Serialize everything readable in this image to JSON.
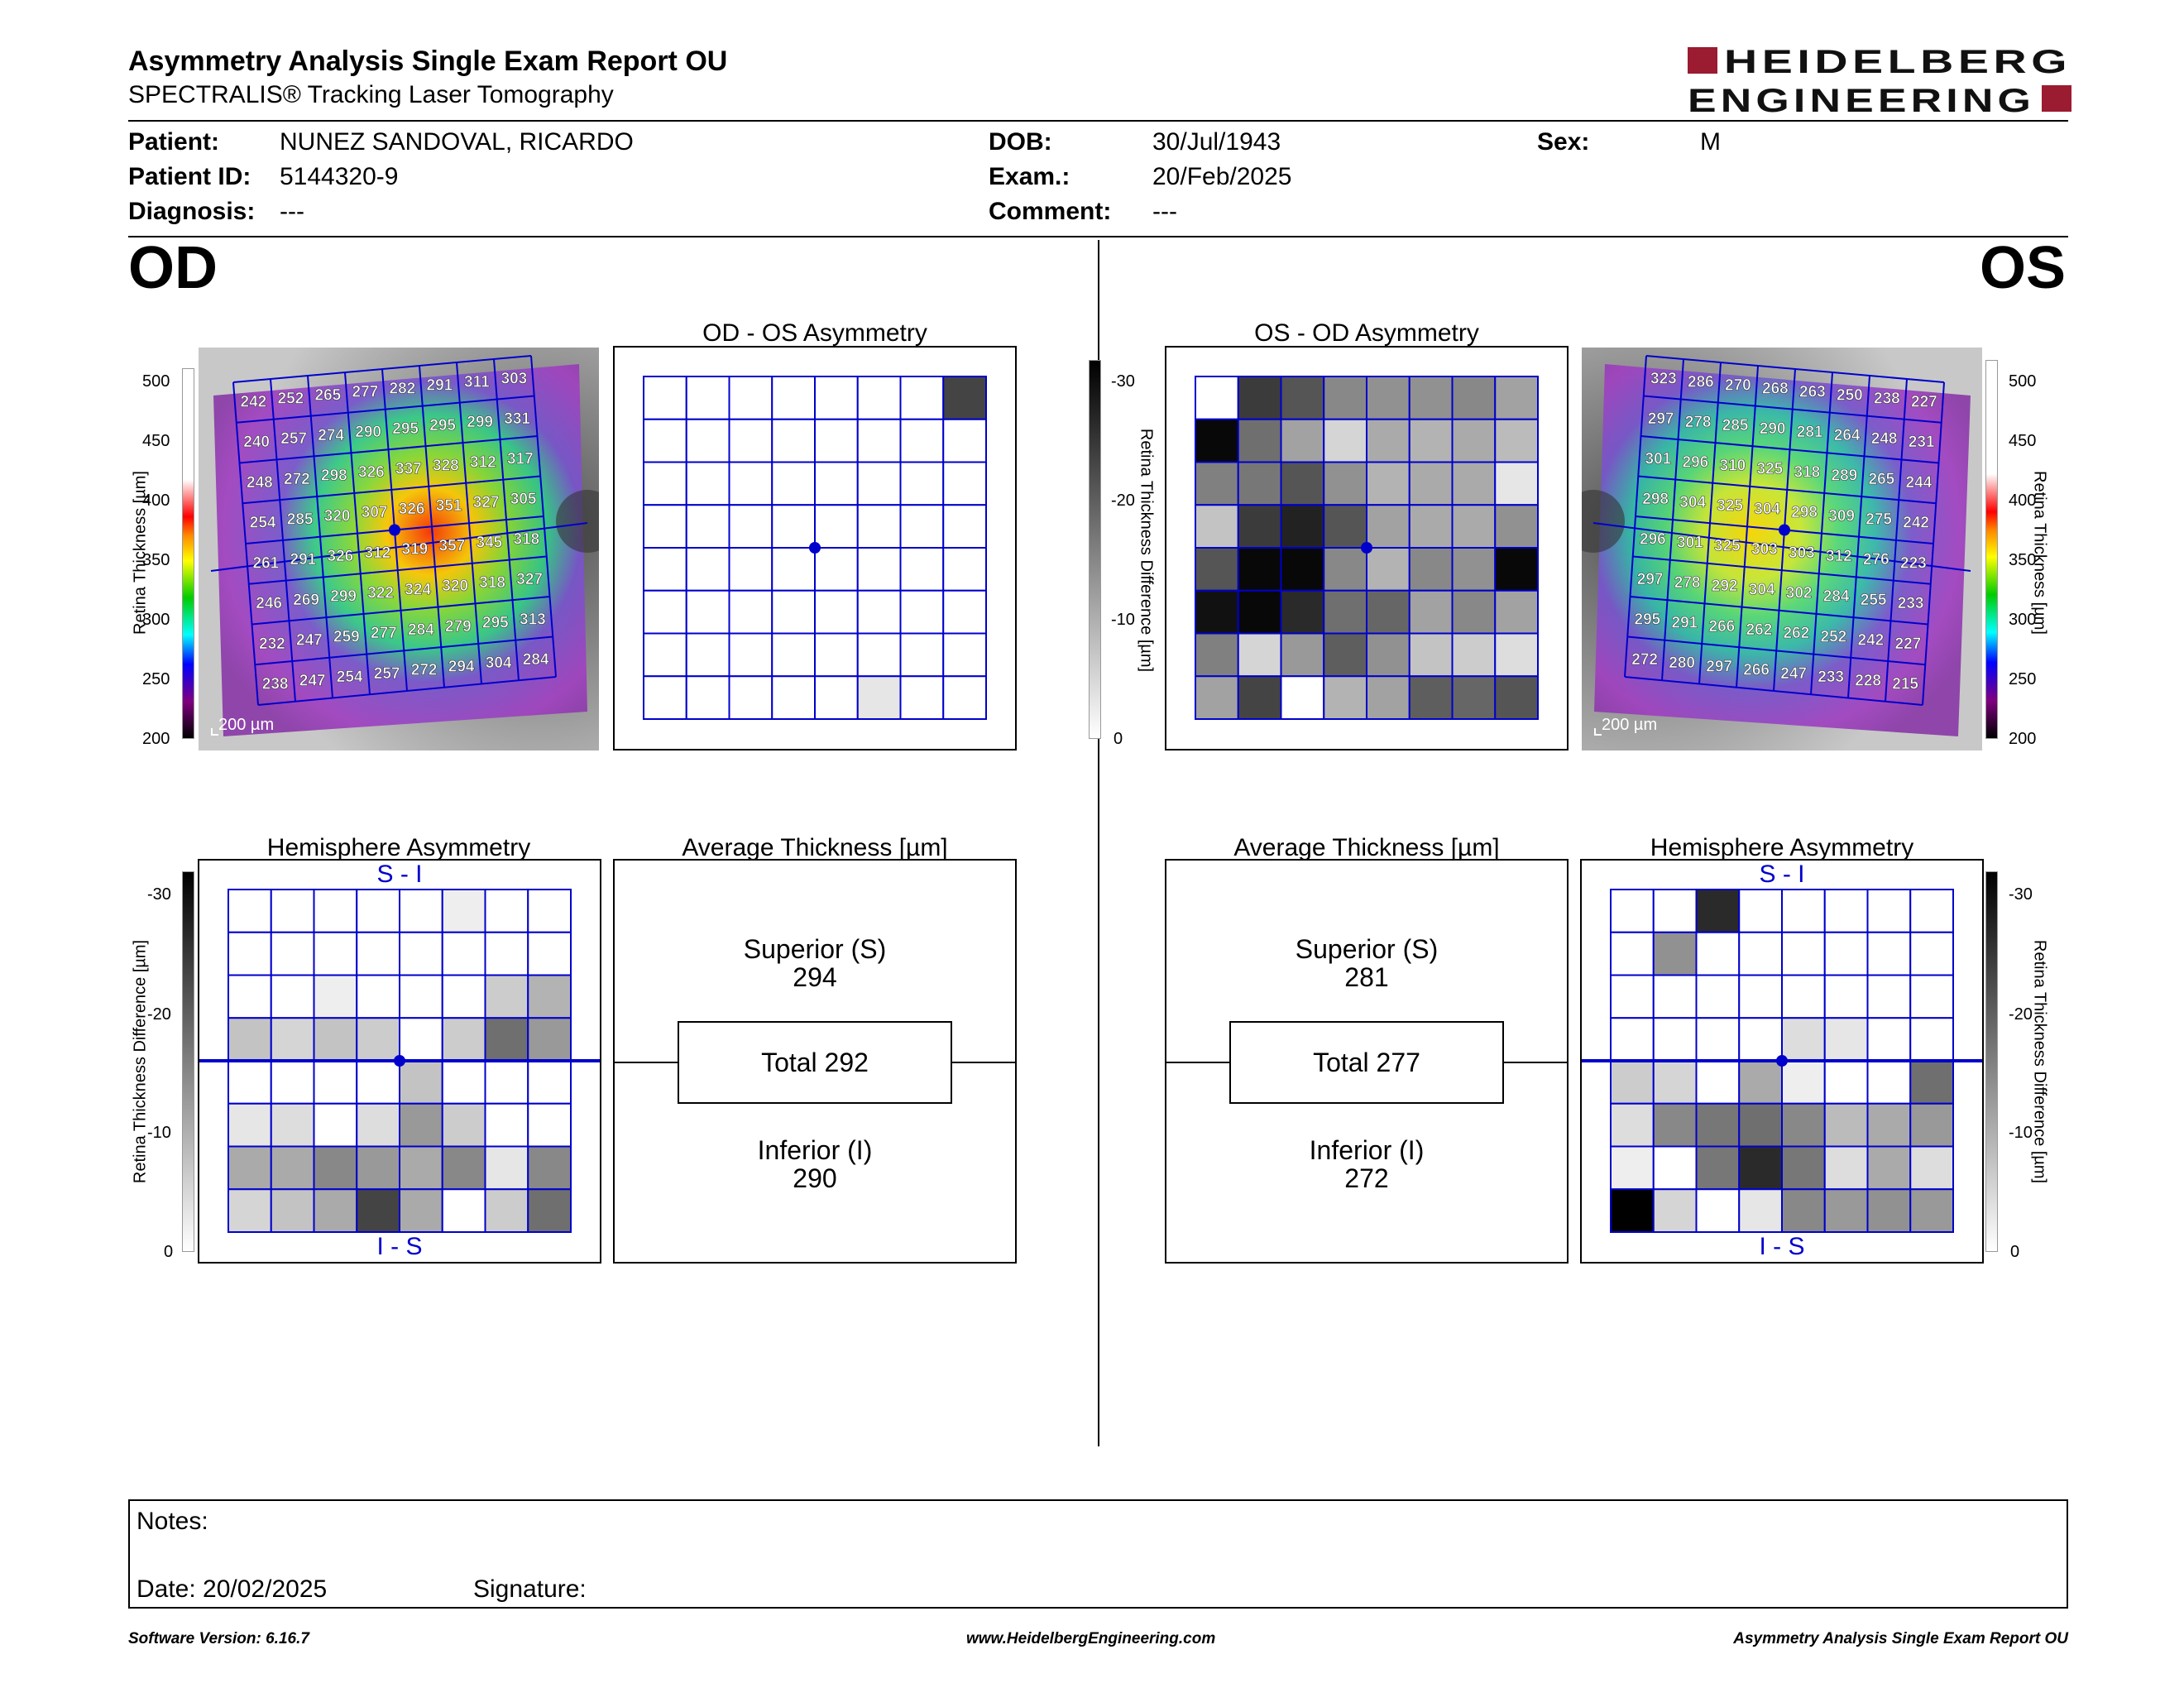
{
  "header": {
    "title": "Asymmetry Analysis Single Exam Report OU",
    "subtitle": "SPECTRALIS® Tracking Laser Tomography",
    "logo_line1": "HEIDELBERG",
    "logo_line2": "ENGINEERING"
  },
  "patient": {
    "patient_label": "Patient:",
    "patient_value": "NUNEZ SANDOVAL, RICARDO",
    "id_label": "Patient ID:",
    "id_value": "5144320-9",
    "diagnosis_label": "Diagnosis:",
    "diagnosis_value": "---",
    "dob_label": "DOB:",
    "dob_value": "30/Jul/1943",
    "exam_label": "Exam.:",
    "exam_value": "20/Feb/2025",
    "comment_label": "Comment:",
    "comment_value": "---",
    "sex_label": "Sex:",
    "sex_value": "M"
  },
  "od": {
    "eye_label": "OD",
    "asym_title": "OD - OS Asymmetry",
    "hemi_title": "Hemisphere Asymmetry",
    "hemi_top": "S - I",
    "hemi_bottom": "I - S",
    "avg_title": "Average Thickness [µm]",
    "superior_label": "Superior (S)",
    "superior_value": "294",
    "total_label": "Total 292",
    "inferior_label": "Inferior (I)",
    "inferior_value": "290",
    "scale_label": "200 µm",
    "thickness_grid": [
      [
        242,
        252,
        265,
        277,
        282,
        291,
        311,
        303
      ],
      [
        240,
        257,
        274,
        290,
        295,
        295,
        299,
        331
      ],
      [
        248,
        272,
        298,
        326,
        337,
        328,
        312,
        317
      ],
      [
        254,
        285,
        320,
        307,
        326,
        351,
        327,
        305
      ],
      [
        261,
        291,
        326,
        312,
        319,
        357,
        345,
        318
      ],
      [
        246,
        269,
        299,
        322,
        324,
        320,
        318,
        327
      ],
      [
        232,
        247,
        259,
        277,
        284,
        279,
        295,
        313
      ],
      [
        238,
        247,
        254,
        257,
        272,
        294,
        304,
        284
      ]
    ],
    "asym_grid": [
      [
        0,
        0,
        0,
        0,
        0,
        0,
        0,
        -22
      ],
      [
        0,
        0,
        0,
        0,
        0,
        0,
        0,
        0
      ],
      [
        0,
        0,
        0,
        0,
        0,
        0,
        0,
        0
      ],
      [
        0,
        0,
        0,
        0,
        0,
        0,
        0,
        0
      ],
      [
        0,
        0,
        0,
        0,
        0,
        0,
        0,
        0
      ],
      [
        0,
        0,
        0,
        0,
        0,
        0,
        0,
        0
      ],
      [
        0,
        0,
        0,
        0,
        0,
        0,
        0,
        0
      ],
      [
        0,
        0,
        0,
        0,
        0,
        -3,
        0,
        0
      ]
    ],
    "hemi_grid": [
      [
        0,
        0,
        0,
        0,
        0,
        -2,
        0,
        0
      ],
      [
        0,
        0,
        0,
        0,
        0,
        0,
        0,
        0
      ],
      [
        0,
        0,
        -2,
        0,
        0,
        0,
        -6,
        -9
      ],
      [
        -7,
        -5,
        -7,
        -6,
        0,
        -6,
        -17,
        -12
      ],
      [
        0,
        0,
        0,
        0,
        -7,
        0,
        0,
        0
      ],
      [
        -3,
        -4,
        0,
        -4,
        -12,
        -6,
        0,
        0
      ],
      [
        -10,
        -10,
        -14,
        -12,
        -10,
        -14,
        -3,
        -14
      ],
      [
        -5,
        -7,
        -10,
        -22,
        -10,
        0,
        -6,
        -17
      ]
    ]
  },
  "os": {
    "eye_label": "OS",
    "asym_title": "OS - OD Asymmetry",
    "hemi_title": "Hemisphere Asymmetry",
    "hemi_top": "S - I",
    "hemi_bottom": "I - S",
    "avg_title": "Average Thickness [µm]",
    "superior_label": "Superior (S)",
    "superior_value": "281",
    "total_label": "Total 277",
    "inferior_label": "Inferior (I)",
    "inferior_value": "272",
    "scale_label": "200 µm",
    "thickness_grid": [
      [
        323,
        286,
        270,
        268,
        263,
        250,
        238,
        227
      ],
      [
        297,
        278,
        285,
        290,
        281,
        264,
        248,
        231
      ],
      [
        301,
        296,
        310,
        325,
        318,
        289,
        265,
        244
      ],
      [
        298,
        304,
        325,
        304,
        298,
        309,
        275,
        242
      ],
      [
        296,
        301,
        325,
        303,
        303,
        312,
        276,
        223
      ],
      [
        297,
        278,
        292,
        304,
        302,
        284,
        255,
        233
      ],
      [
        295,
        291,
        266,
        262,
        262,
        252,
        242,
        227
      ],
      [
        272,
        280,
        297,
        266,
        247,
        233,
        228,
        215
      ]
    ],
    "asym_grid": [
      [
        0,
        -23,
        -20,
        -14,
        -13,
        -13,
        -14,
        -11
      ],
      [
        -29,
        -17,
        -11,
        -5,
        -10,
        -9,
        -10,
        -8
      ],
      [
        -15,
        -16,
        -20,
        -13,
        -9,
        -10,
        -10,
        -3
      ],
      [
        -7,
        -23,
        -26,
        -20,
        -11,
        -10,
        -10,
        -13
      ],
      [
        -20,
        -29,
        -29,
        -14,
        -9,
        -14,
        -13,
        -29
      ],
      [
        -28,
        -29,
        -25,
        -17,
        -18,
        -11,
        -14,
        -11
      ],
      [
        -15,
        -5,
        -12,
        -19,
        -13,
        -7,
        -6,
        -4
      ],
      [
        -11,
        -22,
        0,
        -9,
        -11,
        -19,
        -18,
        -20
      ]
    ],
    "hemi_grid": [
      [
        0,
        0,
        -25,
        0,
        0,
        0,
        0,
        0
      ],
      [
        0,
        -13,
        0,
        0,
        0,
        0,
        0,
        0
      ],
      [
        0,
        0,
        0,
        0,
        0,
        0,
        0,
        0
      ],
      [
        0,
        0,
        0,
        0,
        -4,
        -3,
        0,
        0
      ],
      [
        -6,
        -5,
        0,
        -10,
        -2,
        0,
        0,
        -17
      ],
      [
        -4,
        -14,
        -16,
        -17,
        -14,
        -8,
        -10,
        -12
      ],
      [
        -2,
        0,
        -16,
        -25,
        -16,
        -4,
        -10,
        -4
      ],
      [
        -30,
        -5,
        0,
        -3,
        -14,
        -12,
        -13,
        -12
      ]
    ]
  },
  "colorbars": {
    "thickness_label": "Retina Thickness [µm]",
    "thickness_ticks": [
      "500",
      "450",
      "400",
      "350",
      "300",
      "250",
      "200"
    ],
    "diff_label": "Retina Thickness Difference [µm]",
    "diff_ticks": [
      "-30",
      "-20",
      "-10",
      "0"
    ]
  },
  "notes": {
    "notes_label": "Notes:",
    "date_label": "Date: 20/02/2025",
    "signature_label": "Signature:"
  },
  "footer": {
    "software": "Software Version: 6.16.7",
    "website": "www.HeidelbergEngineering.com",
    "report": "Asymmetry Analysis Single Exam Report OU"
  },
  "colors": {
    "grid_line": "#0000cc",
    "brand_red": "#9b1b30",
    "text": "#000000"
  }
}
